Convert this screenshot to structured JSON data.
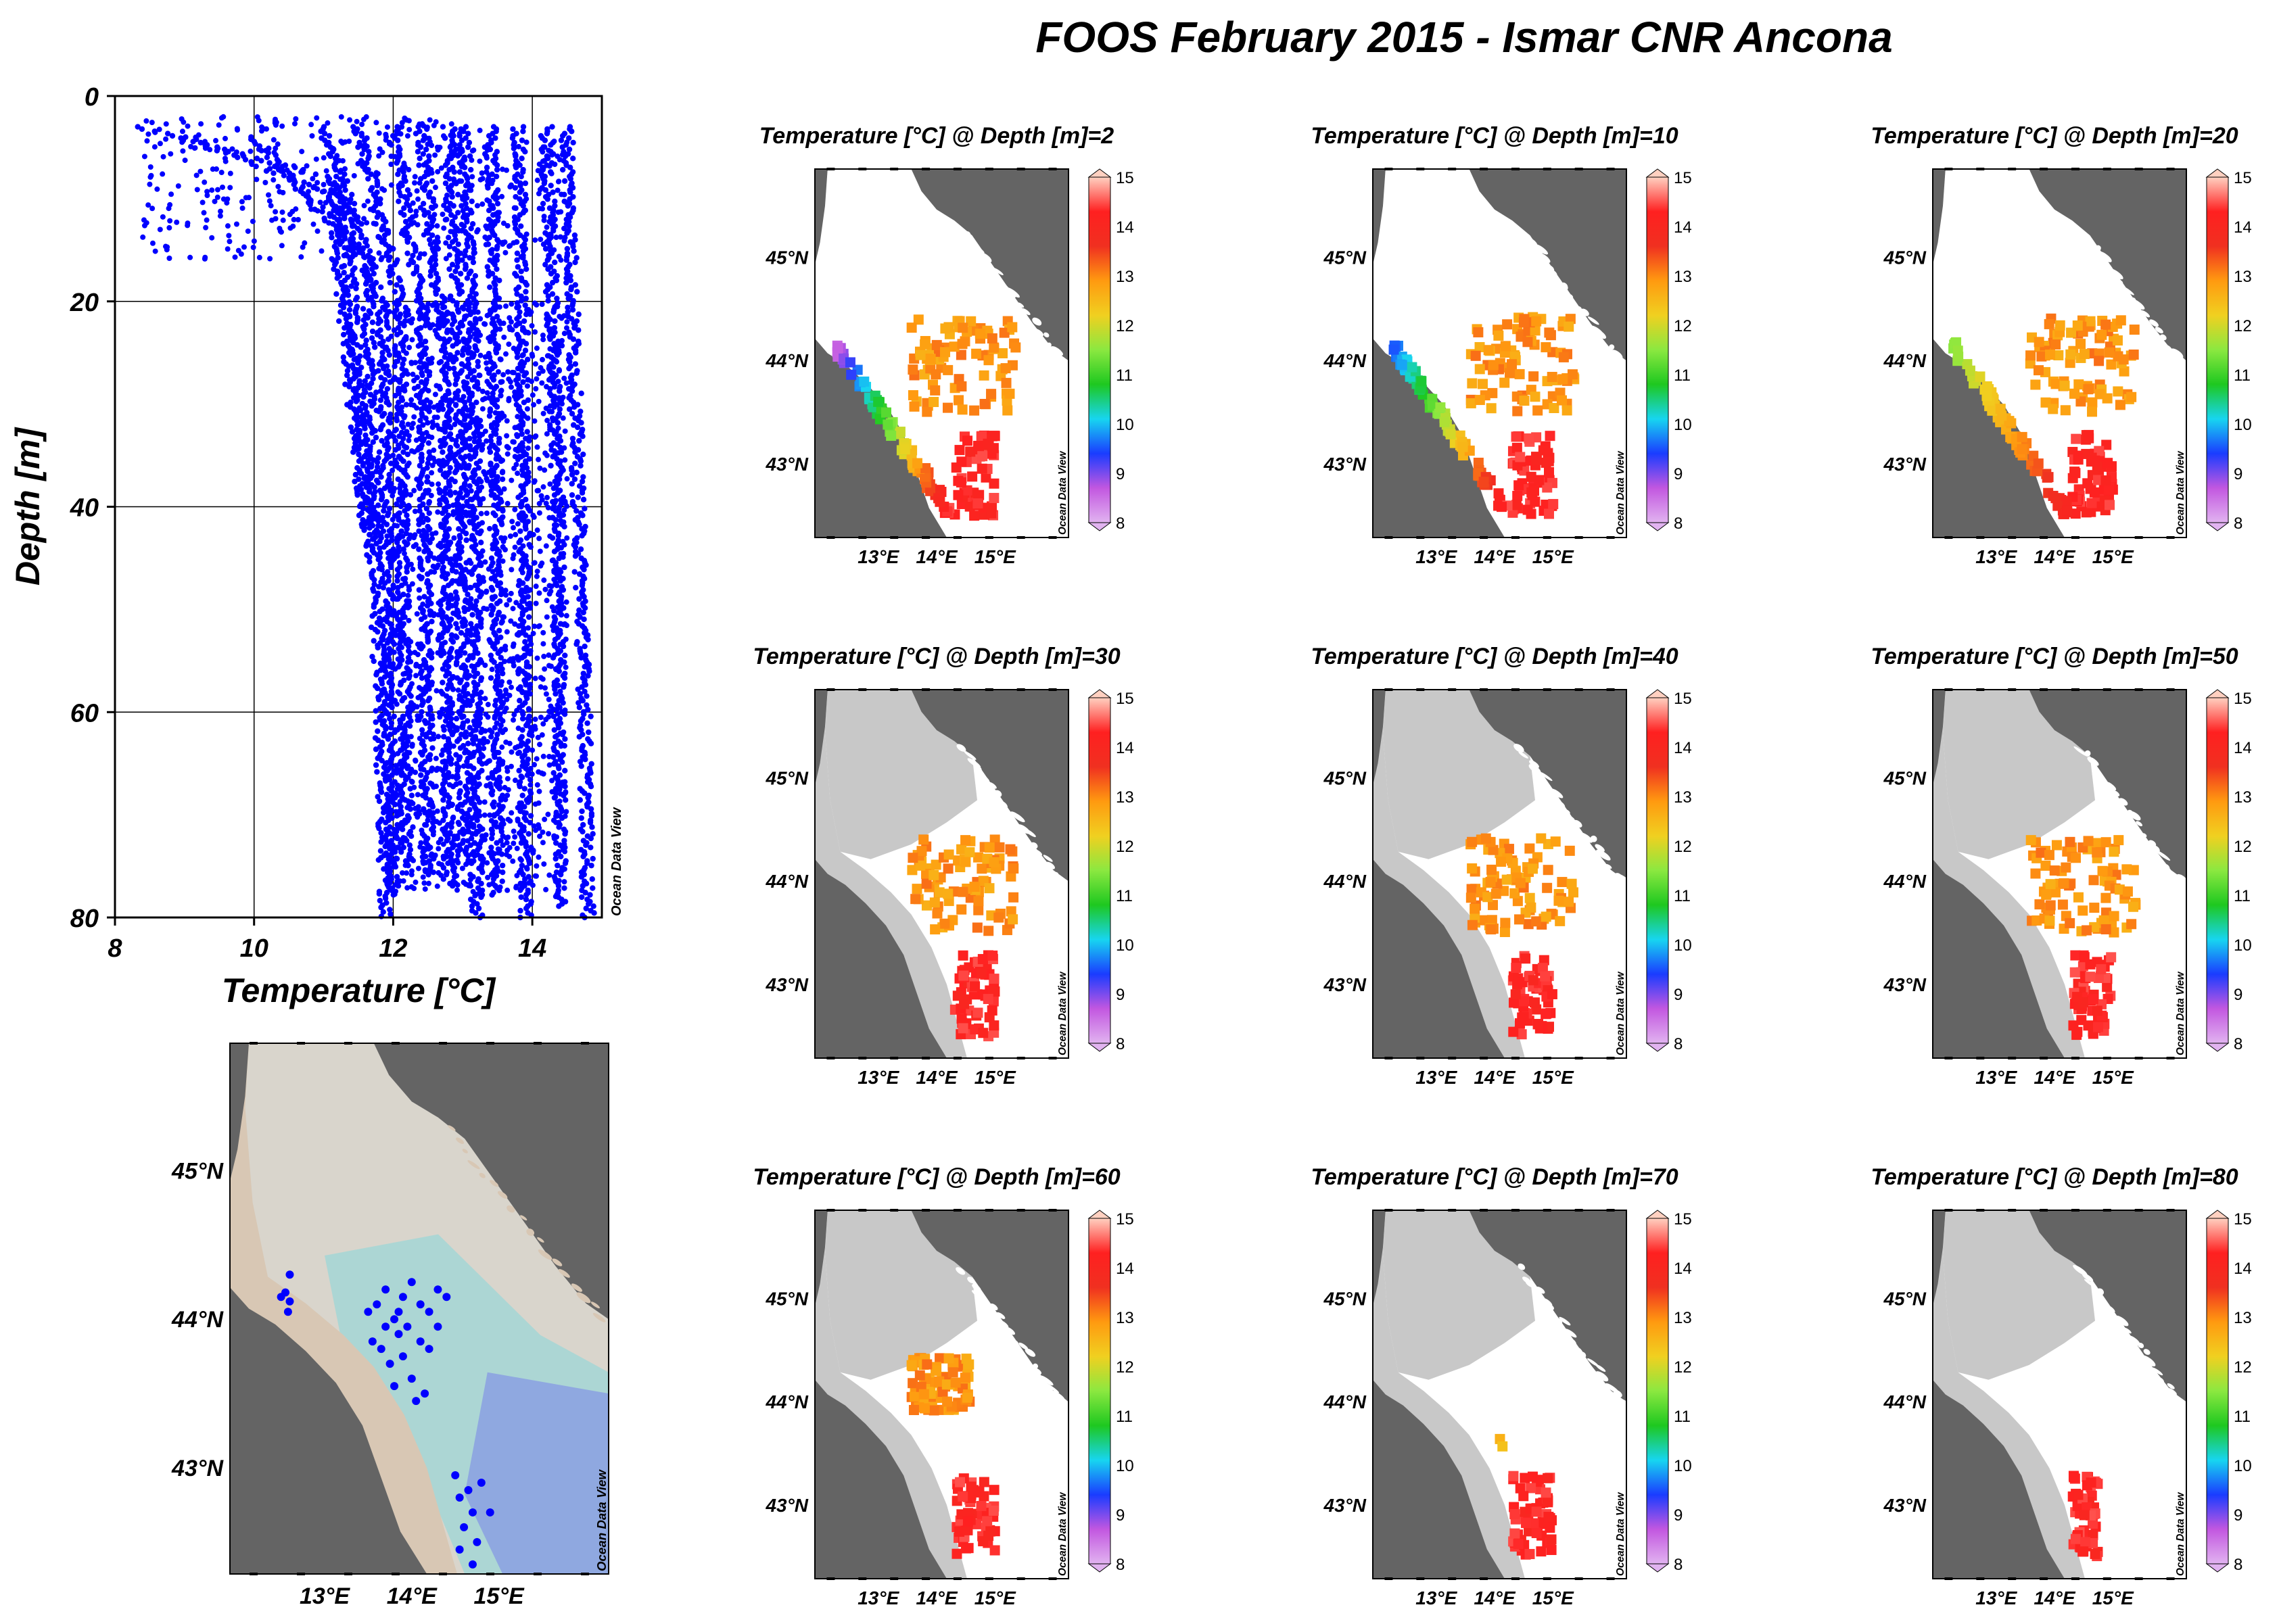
{
  "title": "FOOS February 2015 - Ismar CNR Ancona",
  "watermark": "Ocean Data View",
  "colors": {
    "points": "#0000ff",
    "land": "#646464",
    "shelf_masked": "#c8c8c8",
    "map_water": "#ffffff",
    "station_land_tint": "#d8c7b4",
    "station_shelf": "#d9d5cc",
    "station_mid": "#acd6d4",
    "station_deep": "#8fa8e0"
  },
  "colormap": [
    "#e1b3f0",
    "#c257e0",
    "#1a3cff",
    "#17d5f0",
    "#1ec820",
    "#8be840",
    "#f0d020",
    "#ff9a10",
    "#f03020",
    "#ff2020",
    "#ffd0c0"
  ],
  "chart_data": [
    {
      "id": "profile",
      "type": "scatter",
      "xlabel": "Temperature [°C]",
      "ylabel": "Depth [m]",
      "xlim": [
        8,
        15
      ],
      "ylim": [
        0,
        80
      ],
      "y_inverted": true,
      "xticks": [
        8,
        10,
        12,
        14
      ],
      "yticks": [
        0,
        20,
        40,
        60,
        80
      ],
      "grid": true,
      "point_color": "#0000ff",
      "profiles": [
        {
          "top": [
            8.3,
            3
          ],
          "break_depth": 8,
          "bottom": [
            11.6,
            42
          ]
        },
        {
          "top": [
            9.0,
            4
          ],
          "break_depth": 10,
          "bottom": [
            11.7,
            45
          ]
        },
        {
          "top": [
            10.0,
            4
          ],
          "break_depth": 16,
          "bottom": [
            11.9,
            80
          ]
        },
        {
          "top": [
            11.0,
            3
          ],
          "break_depth": 20,
          "bottom": [
            12.0,
            78
          ]
        },
        {
          "top": [
            11.5,
            3
          ],
          "break_depth": 20,
          "bottom": [
            12.2,
            75
          ]
        },
        {
          "top": [
            12.0,
            3
          ],
          "break_depth": 22,
          "bottom": [
            12.5,
            76
          ]
        },
        {
          "top": [
            12.4,
            3
          ],
          "break_depth": 25,
          "bottom": [
            12.8,
            77
          ]
        },
        {
          "top": [
            12.8,
            3
          ],
          "break_depth": 30,
          "bottom": [
            13.0,
            74
          ]
        },
        {
          "top": [
            13.0,
            3
          ],
          "break_depth": 30,
          "bottom": [
            13.2,
            80
          ]
        },
        {
          "top": [
            13.4,
            3
          ],
          "break_depth": 35,
          "bottom": [
            13.5,
            78
          ]
        },
        {
          "top": [
            13.8,
            3
          ],
          "break_depth": 40,
          "bottom": [
            13.9,
            80
          ]
        },
        {
          "top": [
            14.2,
            3
          ],
          "break_depth": 40,
          "bottom": [
            14.4,
            79
          ]
        },
        {
          "top": [
            14.5,
            3
          ],
          "break_depth": 60,
          "bottom": [
            14.8,
            80
          ]
        }
      ]
    },
    {
      "id": "stations",
      "type": "scatter",
      "xticks": [
        "13°E",
        "14°E",
        "15°E"
      ],
      "yticks": [
        "45°N",
        "44°N",
        "43°N"
      ],
      "point_color": "#0000ff",
      "points": [
        [
          12.55,
          44.18
        ],
        [
          12.6,
          44.12
        ],
        [
          12.5,
          44.15
        ],
        [
          12.58,
          44.05
        ],
        [
          12.6,
          44.3
        ],
        [
          13.5,
          44.05
        ],
        [
          13.6,
          44.1
        ],
        [
          13.7,
          44.2
        ],
        [
          13.8,
          44.0
        ],
        [
          13.85,
          43.9
        ],
        [
          13.9,
          44.15
        ],
        [
          14.0,
          44.25
        ],
        [
          14.1,
          44.1
        ],
        [
          14.2,
          44.05
        ],
        [
          14.3,
          44.2
        ],
        [
          14.4,
          44.15
        ],
        [
          13.55,
          43.85
        ],
        [
          13.65,
          43.8
        ],
        [
          13.75,
          43.7
        ],
        [
          13.9,
          43.75
        ],
        [
          14.0,
          43.6
        ],
        [
          14.15,
          43.5
        ],
        [
          14.05,
          43.45
        ],
        [
          13.8,
          43.55
        ],
        [
          14.2,
          43.8
        ],
        [
          14.3,
          43.95
        ],
        [
          13.95,
          43.95
        ],
        [
          14.1,
          43.85
        ],
        [
          13.7,
          43.95
        ],
        [
          13.85,
          44.05
        ],
        [
          14.5,
          42.95
        ],
        [
          14.55,
          42.8
        ],
        [
          14.7,
          42.7
        ],
        [
          14.6,
          42.6
        ],
        [
          14.75,
          42.5
        ],
        [
          14.8,
          42.9
        ],
        [
          14.65,
          42.85
        ],
        [
          14.9,
          42.7
        ],
        [
          14.55,
          42.45
        ],
        [
          14.7,
          42.35
        ]
      ]
    },
    {
      "id": "map-2",
      "type": "heatmap",
      "title": "Temperature [°C] @ Depth [m]=2",
      "depth": 2,
      "colorbar_ticks": [
        15,
        14,
        13,
        12,
        11,
        10,
        9,
        8
      ],
      "clim": [
        8,
        15
      ]
    },
    {
      "id": "map-10",
      "type": "heatmap",
      "title": "Temperature [°C] @ Depth [m]=10",
      "depth": 10,
      "colorbar_ticks": [
        15,
        14,
        13,
        12,
        11,
        10,
        9,
        8
      ],
      "clim": [
        8,
        15
      ]
    },
    {
      "id": "map-20",
      "type": "heatmap",
      "title": "Temperature [°C] @ Depth [m]=20",
      "depth": 20,
      "colorbar_ticks": [
        15,
        14,
        13,
        12,
        11,
        10,
        9,
        8
      ],
      "clim": [
        8,
        15
      ]
    },
    {
      "id": "map-30",
      "type": "heatmap",
      "title": "Temperature [°C] @ Depth [m]=30",
      "depth": 30,
      "colorbar_ticks": [
        15,
        14,
        13,
        12,
        11,
        10,
        9,
        8
      ],
      "clim": [
        8,
        15
      ]
    },
    {
      "id": "map-40",
      "type": "heatmap",
      "title": "Temperature [°C] @ Depth [m]=40",
      "depth": 40,
      "colorbar_ticks": [
        15,
        14,
        13,
        12,
        11,
        10,
        9,
        8
      ],
      "clim": [
        8,
        15
      ]
    },
    {
      "id": "map-50",
      "type": "heatmap",
      "title": "Temperature [°C] @ Depth [m]=50",
      "depth": 50,
      "colorbar_ticks": [
        15,
        14,
        13,
        12,
        11,
        10,
        9,
        8
      ],
      "clim": [
        8,
        15
      ]
    },
    {
      "id": "map-60",
      "type": "heatmap",
      "title": "Temperature [°C] @ Depth [m]=60",
      "depth": 60,
      "colorbar_ticks": [
        15,
        14,
        13,
        12,
        11,
        10,
        9,
        8
      ],
      "clim": [
        8,
        15
      ]
    },
    {
      "id": "map-70",
      "type": "heatmap",
      "title": "Temperature [°C] @ Depth [m]=70",
      "depth": 70,
      "colorbar_ticks": [
        15,
        14,
        13,
        12,
        11,
        10,
        9,
        8
      ],
      "clim": [
        8,
        15
      ]
    },
    {
      "id": "map-80",
      "type": "heatmap",
      "title": "Temperature [°C] @ Depth [m]=80",
      "depth": 80,
      "colorbar_ticks": [
        15,
        14,
        13,
        12,
        11,
        10,
        9,
        8
      ],
      "clim": [
        8,
        15
      ]
    }
  ],
  "map_axes": {
    "lon_ticks": [
      "13°E",
      "14°E",
      "15°E"
    ],
    "lat_ticks": [
      "45°N",
      "44°N",
      "43°N"
    ]
  }
}
